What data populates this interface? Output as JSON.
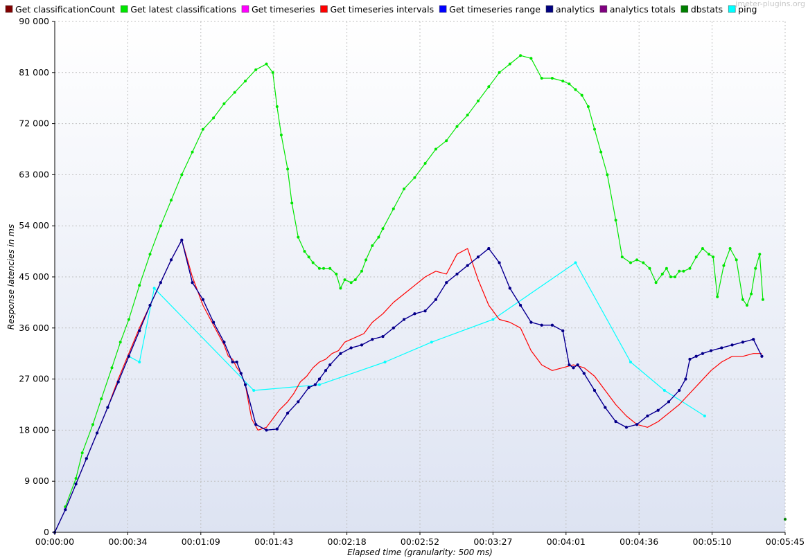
{
  "watermark": "jmeter-plugins.org",
  "colors": {
    "Get classificationCount": "#800000",
    "Get latest classifications": "#00e600",
    "Get timeseries": "#ff00ff",
    "Get timeseries intervals": "#ff0000",
    "Get timeseries range": "#0000ff",
    "analytics": "#000080",
    "analytics totals": "#800080",
    "dbstats": "#008000",
    "ping": "#00ffff"
  },
  "chart_data": {
    "type": "line",
    "xlabel": "Elapsed time (granularity: 500 ms)",
    "ylabel": "Response latencies in ms",
    "xlim": [
      0,
      345
    ],
    "ylim": [
      0,
      90000
    ],
    "grid": true,
    "legend": "top",
    "x_ticks": [
      {
        "value": 0,
        "label": "00:00:00"
      },
      {
        "value": 34.5,
        "label": "00:00:34"
      },
      {
        "value": 69,
        "label": "00:01:09"
      },
      {
        "value": 103.5,
        "label": "00:01:43"
      },
      {
        "value": 138,
        "label": "00:02:18"
      },
      {
        "value": 172.5,
        "label": "00:02:52"
      },
      {
        "value": 207,
        "label": "00:03:27"
      },
      {
        "value": 241.5,
        "label": "00:04:01"
      },
      {
        "value": 276,
        "label": "00:04:36"
      },
      {
        "value": 310.5,
        "label": "00:05:10"
      },
      {
        "value": 345,
        "label": "00:05:45"
      }
    ],
    "y_ticks": [
      {
        "value": 0,
        "label": "0"
      },
      {
        "value": 9000,
        "label": "9 000"
      },
      {
        "value": 18000,
        "label": "18 000"
      },
      {
        "value": 27000,
        "label": "27 000"
      },
      {
        "value": 36000,
        "label": "36 000"
      },
      {
        "value": 45000,
        "label": "45 000"
      },
      {
        "value": 54000,
        "label": "54 000"
      },
      {
        "value": 63000,
        "label": "63 000"
      },
      {
        "value": 72000,
        "label": "72 000"
      },
      {
        "value": 81000,
        "label": "81 000"
      },
      {
        "value": 90000,
        "label": "90 000"
      }
    ],
    "series": [
      {
        "name": "Get classificationCount",
        "x": [],
        "y": []
      },
      {
        "name": "Get latest classifications",
        "x": [
          5,
          10,
          13,
          18,
          22,
          27,
          31,
          35,
          40,
          45,
          50,
          55,
          60,
          65,
          70,
          75,
          80,
          85,
          90,
          95,
          100,
          103,
          105,
          107,
          110,
          112,
          115,
          118,
          120,
          122,
          125,
          127,
          130,
          133,
          135,
          137,
          140,
          142,
          145,
          147,
          150,
          153,
          155,
          160,
          165,
          170,
          175,
          180,
          185,
          190,
          195,
          200,
          205,
          210,
          215,
          220,
          225,
          230,
          235,
          240,
          243,
          246,
          249,
          252,
          255,
          258,
          261,
          265,
          268,
          272,
          275,
          278,
          281,
          284,
          287,
          289,
          291,
          293,
          295,
          297,
          300,
          303,
          306,
          309,
          311,
          313,
          316,
          319,
          322,
          325,
          327,
          329,
          331,
          333,
          334.5
        ],
        "y": [
          4500,
          9500,
          14000,
          19000,
          23500,
          29000,
          33500,
          37500,
          43500,
          49000,
          54000,
          58500,
          63000,
          67000,
          71000,
          73000,
          75500,
          77500,
          79500,
          81500,
          82500,
          81000,
          75000,
          70000,
          64000,
          58000,
          52000,
          49500,
          48500,
          47500,
          46500,
          46500,
          46500,
          45500,
          43000,
          44500,
          44000,
          44500,
          46000,
          48000,
          50500,
          52000,
          53500,
          57000,
          60500,
          62500,
          65000,
          67500,
          69000,
          71500,
          73500,
          76000,
          78500,
          81000,
          82500,
          84000,
          83500,
          80000,
          80000,
          79500,
          79000,
          78000,
          77000,
          75000,
          71000,
          67000,
          63000,
          55000,
          48500,
          47500,
          48000,
          47500,
          46500,
          44000,
          45500,
          46500,
          45000,
          45000,
          46000,
          46000,
          46500,
          48500,
          50000,
          49000,
          48500,
          41500,
          47000,
          50000,
          48000,
          41000,
          40000,
          42000,
          46500,
          49000,
          41000
        ],
        "markers": true
      },
      {
        "name": "Get timeseries",
        "x": [
          0,
          5,
          10,
          15,
          20,
          25,
          30,
          35,
          40,
          45,
          50,
          55,
          60,
          65,
          70,
          75,
          80,
          84,
          86,
          88,
          90,
          95,
          100,
          105,
          110,
          115,
          120,
          123,
          125,
          128,
          130,
          135,
          140,
          145,
          150,
          155,
          160,
          165,
          170,
          175,
          180,
          185,
          190,
          195,
          200,
          205,
          210,
          215,
          220,
          225,
          230,
          235,
          240,
          243,
          245,
          247,
          250,
          255,
          260,
          265,
          270,
          275,
          280,
          285,
          290,
          295,
          298,
          300,
          303,
          306,
          310,
          315,
          320,
          325,
          330,
          334
        ],
        "y": [
          0,
          4000,
          8500,
          13000,
          17500,
          22000,
          26500,
          31000,
          35500,
          40000,
          44000,
          48000,
          51500,
          44000,
          41000,
          37000,
          33500,
          30000,
          30000,
          28000,
          26000,
          19000,
          18000,
          18200,
          21000,
          23000,
          25500,
          26000,
          27000,
          28500,
          29500,
          31500,
          32500,
          33000,
          34000,
          34500,
          36000,
          37500,
          38500,
          39000,
          41000,
          44000,
          45500,
          47000,
          48500,
          50000,
          47500,
          43000,
          40000,
          37000,
          36500,
          36500,
          35500,
          29500,
          29000,
          29500,
          28000,
          25000,
          22000,
          19500,
          18500,
          19000,
          20500,
          21500,
          23000,
          25000,
          27000,
          30500,
          31000,
          31500,
          32000,
          32500,
          33000,
          33500,
          34000,
          31000
        ],
        "markers": true
      },
      {
        "name": "Get timeseries intervals",
        "x": [
          0,
          5,
          10,
          15,
          20,
          25,
          30,
          35,
          40,
          45,
          50,
          55,
          60,
          65,
          70,
          75,
          80,
          82,
          84,
          86,
          88,
          90,
          93,
          96,
          100,
          103,
          106,
          110,
          113,
          116,
          119,
          122,
          125,
          128,
          131,
          134,
          137,
          140,
          143,
          146,
          150,
          155,
          160,
          165,
          170,
          175,
          180,
          185,
          190,
          195,
          200,
          205,
          210,
          215,
          220,
          225,
          230,
          235,
          240,
          245,
          250,
          255,
          260,
          265,
          270,
          275,
          280,
          285,
          290,
          295,
          300,
          305,
          310,
          315,
          320,
          325,
          330,
          334
        ],
        "y": [
          0,
          4000,
          8500,
          13000,
          17500,
          22000,
          27000,
          31500,
          36000,
          40000,
          44000,
          48000,
          51500,
          45000,
          40000,
          36500,
          33000,
          31000,
          30500,
          29000,
          28000,
          26000,
          20000,
          18000,
          18500,
          20000,
          21500,
          23000,
          24500,
          26500,
          27500,
          29000,
          30000,
          30500,
          31500,
          32000,
          33500,
          34000,
          34500,
          35000,
          37000,
          38500,
          40500,
          42000,
          43500,
          45000,
          46000,
          45500,
          49000,
          50000,
          44500,
          40000,
          37500,
          37000,
          36000,
          32000,
          29500,
          28500,
          29000,
          29500,
          29000,
          27500,
          25000,
          22500,
          20500,
          19000,
          18500,
          19500,
          21000,
          22500,
          24500,
          26500,
          28500,
          30000,
          31000,
          31000,
          31500,
          31500
        ],
        "markers": false
      },
      {
        "name": "Get timeseries range",
        "x": [
          0,
          5,
          10,
          15,
          20,
          25,
          30,
          35,
          40,
          45,
          50,
          55,
          60,
          65,
          70,
          75,
          80,
          84,
          86,
          88,
          90,
          95,
          100,
          105,
          110,
          115,
          120,
          123,
          125,
          128,
          130,
          135,
          140,
          145,
          150,
          155,
          160,
          165,
          170,
          175,
          180,
          185,
          190,
          195,
          200,
          205,
          210,
          215,
          220,
          225,
          230,
          235,
          240,
          243,
          245,
          247,
          250,
          255,
          260,
          265,
          270,
          275,
          280,
          285,
          290,
          295,
          298,
          300,
          303,
          306,
          310,
          315,
          320,
          325,
          330,
          334
        ],
        "y": [
          0,
          4000,
          8500,
          13000,
          17500,
          22000,
          26500,
          31000,
          35500,
          40000,
          44000,
          48000,
          51500,
          44000,
          41000,
          37000,
          33500,
          30000,
          30000,
          28000,
          26000,
          19000,
          18000,
          18200,
          21000,
          23000,
          25500,
          26000,
          27000,
          28500,
          29500,
          31500,
          32500,
          33000,
          34000,
          34500,
          36000,
          37500,
          38500,
          39000,
          41000,
          44000,
          45500,
          47000,
          48500,
          50000,
          47500,
          43000,
          40000,
          37000,
          36500,
          36500,
          35500,
          29500,
          29000,
          29500,
          28000,
          25000,
          22000,
          19500,
          18500,
          19000,
          20500,
          21500,
          23000,
          25000,
          27000,
          30500,
          31000,
          31500,
          32000,
          32500,
          33000,
          33500,
          34000,
          31000
        ],
        "markers": true
      },
      {
        "name": "analytics",
        "x": [
          0,
          5,
          10,
          15,
          20,
          25,
          30,
          35,
          40,
          45,
          50,
          55,
          60,
          65,
          70,
          75,
          80,
          84,
          86,
          88,
          90,
          95,
          100,
          105,
          110,
          115,
          120,
          123,
          125,
          128,
          130,
          135,
          140,
          145,
          150,
          155,
          160,
          165,
          170,
          175,
          180,
          185,
          190,
          195,
          200,
          205,
          210,
          215,
          220,
          225,
          230,
          235,
          240,
          243,
          245,
          247,
          250,
          255,
          260,
          265,
          270,
          275,
          280,
          285,
          290,
          295,
          298,
          300,
          303,
          306,
          310,
          315,
          320,
          325,
          330,
          334
        ],
        "y": [
          0,
          4000,
          8500,
          13000,
          17500,
          22000,
          26500,
          31000,
          35500,
          40000,
          44000,
          48000,
          51500,
          44000,
          41000,
          37000,
          33500,
          30000,
          30000,
          28000,
          26000,
          19000,
          18000,
          18200,
          21000,
          23000,
          25500,
          26000,
          27000,
          28500,
          29500,
          31500,
          32500,
          33000,
          34000,
          34500,
          36000,
          37500,
          38500,
          39000,
          41000,
          44000,
          45500,
          47000,
          48500,
          50000,
          47500,
          43000,
          40000,
          37000,
          36500,
          36500,
          35500,
          29500,
          29000,
          29500,
          28000,
          25000,
          22000,
          19500,
          18500,
          19000,
          20500,
          21500,
          23000,
          25000,
          27000,
          30500,
          31000,
          31500,
          32000,
          32500,
          33000,
          33500,
          34000,
          31000
        ],
        "markers": true
      },
      {
        "name": "analytics totals",
        "x": [],
        "y": []
      },
      {
        "name": "dbstats",
        "x": [
          345
        ],
        "y": [
          2300
        ],
        "markers": true
      },
      {
        "name": "ping",
        "x": [
          0,
          5,
          10,
          15,
          20,
          25,
          30,
          35,
          40,
          47,
          94,
          125,
          156,
          178,
          207,
          246,
          272,
          288,
          307
        ],
        "y": [
          0,
          4000,
          8500,
          13000,
          17500,
          22000,
          26500,
          31000,
          30000,
          43000,
          25000,
          26000,
          30000,
          33500,
          37500,
          47500,
          30000,
          25000,
          20500
        ],
        "markers": true
      }
    ]
  }
}
